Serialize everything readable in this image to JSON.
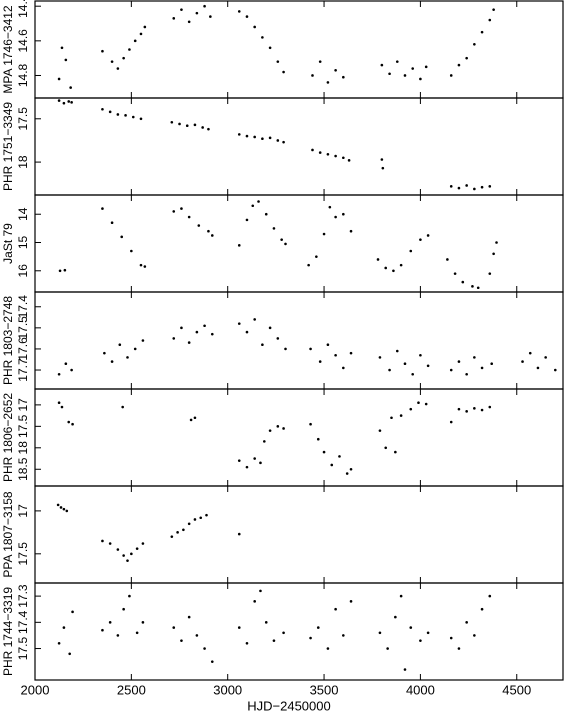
{
  "chart_data": [
    {
      "type": "scatter",
      "ylabel": "MPA 1746−3412",
      "ylim": [
        14.93,
        14.37
      ],
      "yticks": [
        14.4,
        14.6,
        14.8
      ],
      "x": [
        2125,
        2140,
        2160,
        2185,
        2350,
        2400,
        2430,
        2460,
        2490,
        2520,
        2550,
        2570,
        2720,
        2760,
        2800,
        2840,
        2880,
        2910,
        3060,
        3100,
        3140,
        3180,
        3220,
        3260,
        3290,
        3440,
        3480,
        3520,
        3560,
        3600,
        3800,
        3840,
        3880,
        3920,
        3960,
        4000,
        4030,
        4160,
        4200,
        4240,
        4280,
        4320,
        4360,
        4380
      ],
      "values": [
        14.82,
        14.64,
        14.71,
        14.87,
        14.66,
        14.72,
        14.76,
        14.7,
        14.65,
        14.6,
        14.56,
        14.52,
        14.47,
        14.42,
        14.49,
        14.44,
        14.4,
        14.46,
        14.43,
        14.46,
        14.52,
        14.58,
        14.64,
        14.72,
        14.78,
        14.8,
        14.72,
        14.84,
        14.77,
        14.81,
        14.74,
        14.79,
        14.72,
        14.8,
        14.76,
        14.82,
        14.75,
        14.8,
        14.74,
        14.7,
        14.62,
        14.55,
        14.48,
        14.42
      ]
    },
    {
      "type": "scatter",
      "ylabel": "PHR 1751−3349",
      "ylim": [
        18.38,
        17.26
      ],
      "yticks": [
        17.5,
        18
      ],
      "x": [
        2125,
        2150,
        2175,
        2190,
        2350,
        2390,
        2430,
        2470,
        2510,
        2550,
        2710,
        2750,
        2790,
        2830,
        2870,
        2900,
        3060,
        3100,
        3140,
        3180,
        3220,
        3260,
        3290,
        3440,
        3480,
        3520,
        3560,
        3600,
        3630,
        3800,
        3805,
        4160,
        4200,
        4240,
        4280,
        4320,
        4360
      ],
      "values": [
        17.29,
        17.32,
        17.3,
        17.31,
        17.39,
        17.42,
        17.45,
        17.46,
        17.48,
        17.5,
        17.54,
        17.56,
        17.58,
        17.57,
        17.6,
        17.62,
        17.68,
        17.7,
        17.71,
        17.73,
        17.72,
        17.75,
        17.77,
        17.86,
        17.89,
        17.91,
        17.93,
        17.95,
        17.98,
        17.97,
        18.07,
        18.28,
        18.3,
        18.27,
        18.31,
        18.29,
        18.28
      ]
    },
    {
      "type": "scatter",
      "ylabel": "JaSt 79",
      "ylim": [
        16.75,
        13.32
      ],
      "yticks": [
        14,
        15,
        16
      ],
      "x": [
        2130,
        2155,
        2350,
        2400,
        2450,
        2500,
        2550,
        2570,
        2720,
        2760,
        2800,
        2850,
        2900,
        2920,
        3060,
        3100,
        3130,
        3160,
        3200,
        3240,
        3280,
        3300,
        3420,
        3460,
        3500,
        3530,
        3560,
        3600,
        3640,
        3780,
        3820,
        3860,
        3900,
        3950,
        4000,
        4040,
        4140,
        4180,
        4220,
        4270,
        4300,
        4360,
        4380,
        4395
      ],
      "values": [
        16.0,
        15.98,
        13.8,
        14.3,
        14.8,
        15.3,
        15.8,
        15.85,
        13.9,
        13.8,
        14.1,
        14.4,
        14.6,
        14.75,
        15.1,
        14.2,
        13.7,
        13.55,
        14.0,
        14.5,
        14.9,
        15.05,
        15.8,
        15.5,
        14.7,
        13.75,
        14.1,
        14.0,
        14.6,
        15.6,
        15.9,
        16.0,
        15.8,
        15.3,
        14.9,
        14.75,
        15.6,
        16.1,
        16.4,
        16.55,
        16.6,
        16.1,
        15.4,
        15.0
      ]
    },
    {
      "type": "scatter",
      "ylabel": "PHR 1803−2748",
      "ylim": [
        17.79,
        17.33
      ],
      "yticks": [
        17.4,
        17.5,
        17.6,
        17.7
      ],
      "x": [
        2125,
        2160,
        2190,
        2360,
        2400,
        2440,
        2480,
        2520,
        2560,
        2720,
        2760,
        2800,
        2840,
        2880,
        2920,
        3060,
        3100,
        3140,
        3180,
        3220,
        3260,
        3300,
        3430,
        3480,
        3520,
        3560,
        3600,
        3640,
        3790,
        3840,
        3880,
        3920,
        3960,
        4000,
        4040,
        4160,
        4200,
        4240,
        4280,
        4320,
        4370,
        4530,
        4570,
        4610,
        4650,
        4700
      ],
      "values": [
        17.72,
        17.67,
        17.7,
        17.62,
        17.66,
        17.58,
        17.64,
        17.6,
        17.56,
        17.55,
        17.5,
        17.57,
        17.52,
        17.49,
        17.53,
        17.48,
        17.52,
        17.46,
        17.58,
        17.5,
        17.55,
        17.6,
        17.6,
        17.66,
        17.58,
        17.63,
        17.69,
        17.62,
        17.64,
        17.7,
        17.61,
        17.67,
        17.72,
        17.63,
        17.68,
        17.7,
        17.66,
        17.72,
        17.64,
        17.69,
        17.67,
        17.66,
        17.62,
        17.69,
        17.64,
        17.7
      ]
    },
    {
      "type": "scatter",
      "ylabel": "PHR 1806−2652",
      "ylim": [
        18.89,
        16.63
      ],
      "yticks": [
        17,
        17.5,
        18,
        18.5
      ],
      "x": [
        2125,
        2140,
        2175,
        2195,
        2455,
        2810,
        2830,
        3060,
        3100,
        3140,
        3170,
        3190,
        3220,
        3260,
        3290,
        3430,
        3470,
        3500,
        3540,
        3580,
        3620,
        3640,
        3790,
        3820,
        3850,
        3870,
        3900,
        3950,
        3990,
        4030,
        4160,
        4200,
        4240,
        4280,
        4320,
        4360
      ],
      "values": [
        16.95,
        17.05,
        17.4,
        17.45,
        17.05,
        17.35,
        17.3,
        18.3,
        18.45,
        18.25,
        18.35,
        17.85,
        17.6,
        17.5,
        17.55,
        17.45,
        17.8,
        18.1,
        18.4,
        18.2,
        18.6,
        18.5,
        17.6,
        18.0,
        17.3,
        18.1,
        17.25,
        17.1,
        16.95,
        16.98,
        17.4,
        17.1,
        17.15,
        17.08,
        17.12,
        17.05
      ]
    },
    {
      "type": "scatter",
      "ylabel": "PPA 1807−3158",
      "ylim": [
        17.84,
        16.71
      ],
      "yticks": [
        17,
        17.5
      ],
      "x": [
        2120,
        2135,
        2150,
        2165,
        2350,
        2390,
        2430,
        2460,
        2480,
        2500,
        2530,
        2560,
        2710,
        2740,
        2770,
        2800,
        2830,
        2860,
        2890,
        3060
      ],
      "values": [
        16.93,
        16.96,
        16.98,
        17.0,
        17.35,
        17.38,
        17.45,
        17.52,
        17.58,
        17.5,
        17.44,
        17.38,
        17.3,
        17.25,
        17.22,
        17.15,
        17.1,
        17.08,
        17.05,
        17.27
      ]
    },
    {
      "type": "scatter",
      "ylabel": "PHR 1744−3319",
      "ylim": [
        17.62,
        17.25
      ],
      "yticks": [
        17.3,
        17.4,
        17.5
      ],
      "xlabel": "HJD−2450000",
      "xlim": [
        2000,
        4740
      ],
      "xticks": [
        2000,
        2500,
        3000,
        3500,
        4000,
        4500
      ],
      "x": [
        2125,
        2150,
        2180,
        2195,
        2350,
        2390,
        2430,
        2460,
        2490,
        2530,
        2560,
        2720,
        2760,
        2800,
        2840,
        2880,
        2920,
        3060,
        3100,
        3140,
        3170,
        3200,
        3240,
        3290,
        3430,
        3470,
        3520,
        3560,
        3600,
        3640,
        3790,
        3830,
        3870,
        3900,
        3920,
        3950,
        4000,
        4040,
        4160,
        4200,
        4240,
        4280,
        4320,
        4360
      ],
      "values": [
        17.48,
        17.42,
        17.52,
        17.36,
        17.43,
        17.4,
        17.45,
        17.35,
        17.3,
        17.44,
        17.4,
        17.42,
        17.47,
        17.38,
        17.45,
        17.5,
        17.55,
        17.42,
        17.48,
        17.32,
        17.28,
        17.4,
        17.47,
        17.44,
        17.46,
        17.42,
        17.5,
        17.35,
        17.45,
        17.32,
        17.44,
        17.5,
        17.38,
        17.3,
        17.58,
        17.42,
        17.47,
        17.44,
        17.46,
        17.5,
        17.4,
        17.45,
        17.35,
        17.3
      ]
    }
  ]
}
